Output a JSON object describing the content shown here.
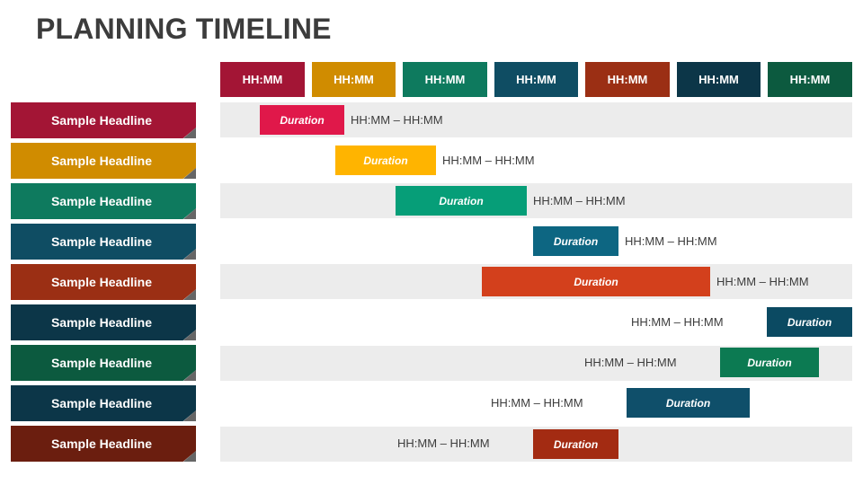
{
  "title": "PLANNING TIMELINE",
  "headers": [
    {
      "label": "HH:MM",
      "color": "#a31535"
    },
    {
      "label": "HH:MM",
      "color": "#d08c00"
    },
    {
      "label": "HH:MM",
      "color": "#0e7a5e"
    },
    {
      "label": "HH:MM",
      "color": "#0f4d63"
    },
    {
      "label": "HH:MM",
      "color": "#9b2f14"
    },
    {
      "label": "HH:MM",
      "color": "#0c3648"
    },
    {
      "label": "HH:MM",
      "color": "#0c5a3f"
    }
  ],
  "rows": [
    {
      "headline": "Sample Headline",
      "color": "#a31535",
      "bar_color": "#e0184a",
      "duration": "Duration",
      "range": "HH:MM – HH:MM"
    },
    {
      "headline": "Sample Headline",
      "color": "#d08c00",
      "bar_color": "#ffb400",
      "duration": "Duration",
      "range": "HH:MM – HH:MM"
    },
    {
      "headline": "Sample Headline",
      "color": "#0e7a5e",
      "bar_color": "#069e78",
      "duration": "Duration",
      "range": "HH:MM – HH:MM"
    },
    {
      "headline": "Sample Headline",
      "color": "#0f4d63",
      "bar_color": "#0d6682",
      "duration": "Duration",
      "range": "HH:MM – HH:MM"
    },
    {
      "headline": "Sample Headline",
      "color": "#9b2f14",
      "bar_color": "#d3401c",
      "duration": "Duration",
      "range": "HH:MM – HH:MM"
    },
    {
      "headline": "Sample Headline",
      "color": "#0c3648",
      "bar_color": "#0b4a62",
      "duration": "Duration",
      "range": "HH:MM – HH:MM"
    },
    {
      "headline": "Sample Headline",
      "color": "#0c5a3f",
      "bar_color": "#0c7a52",
      "duration": "Duration",
      "range": "HH:MM – HH:MM"
    },
    {
      "headline": "Sample Headline",
      "color": "#0c3648",
      "bar_color": "#0f4f6a",
      "duration": "Duration",
      "range": "HH:MM – HH:MM"
    },
    {
      "headline": "Sample Headline",
      "color": "#6b1e0f",
      "bar_color": "#a32b12",
      "duration": "Duration",
      "range": "HH:MM – HH:MM"
    }
  ]
}
